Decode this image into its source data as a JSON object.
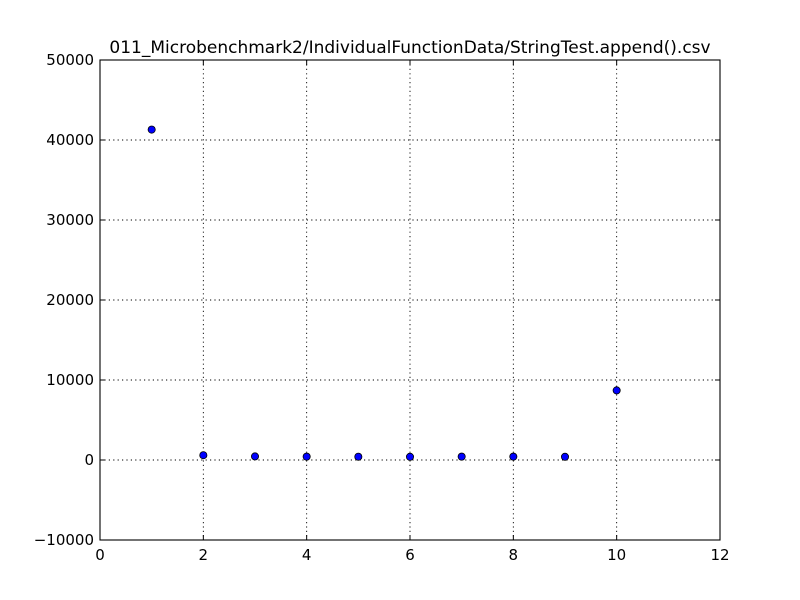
{
  "chart_data": {
    "type": "scatter",
    "title": "011_Microbenchmark2/IndividualFunctionData/StringTest.append().csv",
    "xlabel": "",
    "ylabel": "",
    "xlim": [
      0,
      12
    ],
    "ylim": [
      -10000,
      50000
    ],
    "x_ticks": [
      0,
      2,
      4,
      6,
      8,
      10,
      12
    ],
    "x_tick_labels": [
      "0",
      "2",
      "4",
      "6",
      "8",
      "10",
      "12"
    ],
    "y_ticks": [
      -10000,
      0,
      10000,
      20000,
      30000,
      40000,
      50000
    ],
    "y_tick_labels": [
      "−10000",
      "0",
      "10000",
      "20000",
      "30000",
      "40000",
      "50000"
    ],
    "grid": true,
    "legend": "none",
    "series": [
      {
        "color": "#0000ff",
        "x": [
          1,
          2,
          3,
          4,
          5,
          6,
          7,
          8,
          9,
          10
        ],
        "y": [
          41300,
          600,
          450,
          420,
          410,
          400,
          420,
          420,
          400,
          8700
        ]
      }
    ]
  }
}
